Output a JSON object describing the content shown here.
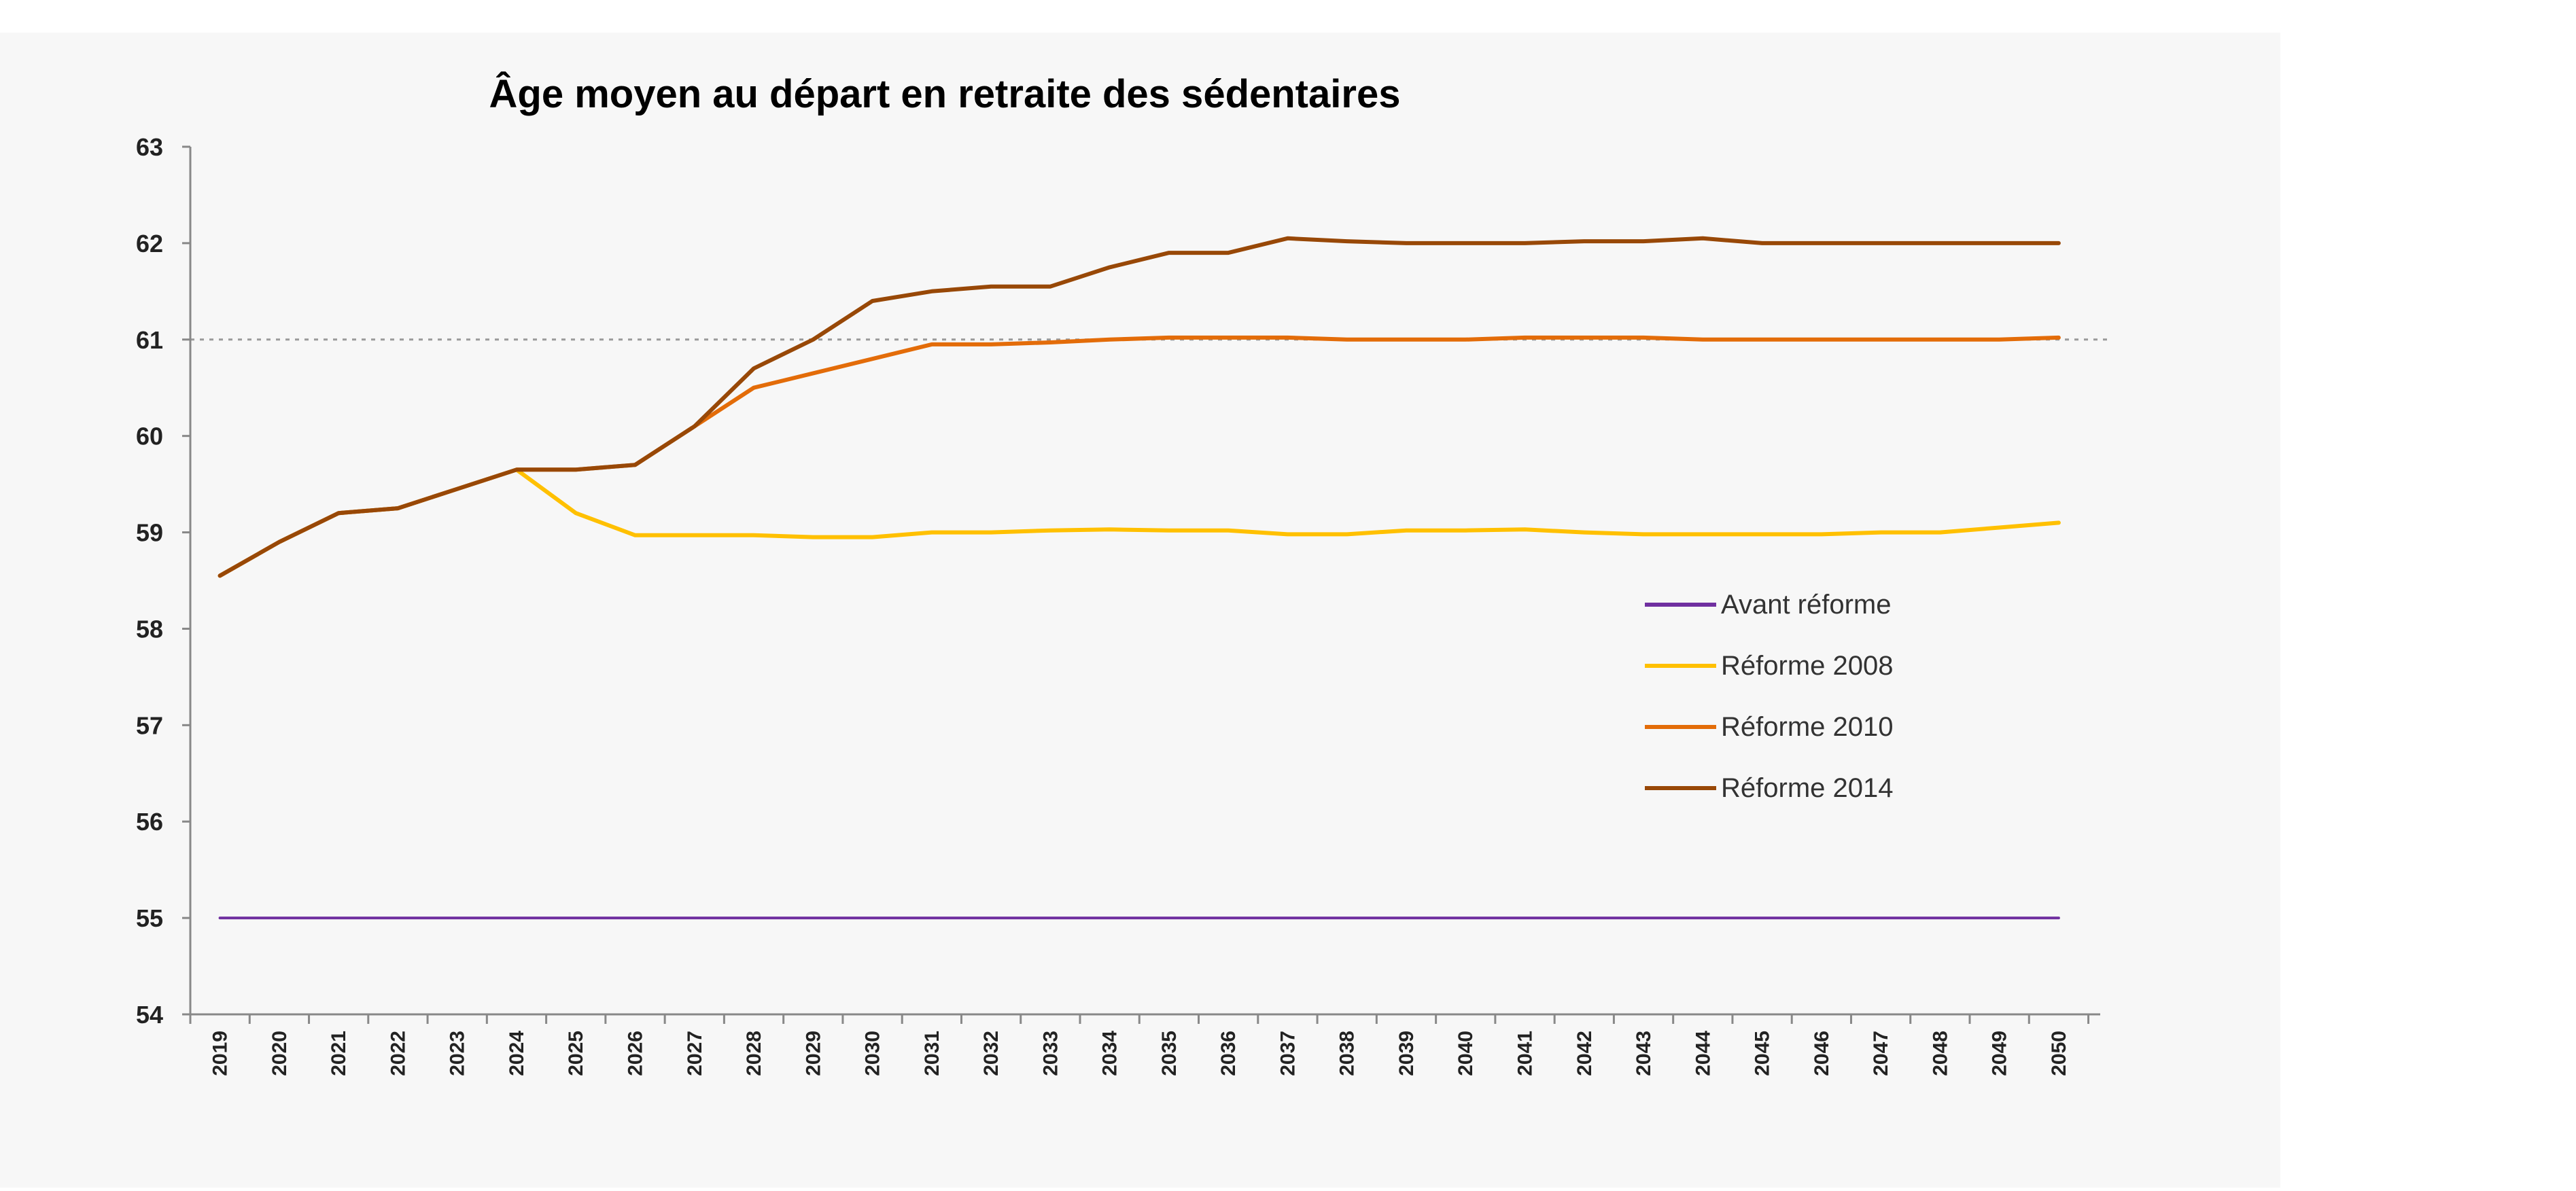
{
  "chart_data": {
    "type": "line",
    "title": "Âge moyen au départ en retraite des sédentaires",
    "xlabel": "",
    "ylabel": "",
    "ylim": [
      54,
      63
    ],
    "yticks": [
      "54",
      "55",
      "56",
      "57",
      "58",
      "59",
      "60",
      "61",
      "62",
      "63"
    ],
    "reference_line": 61,
    "grid": false,
    "legend_position": "right",
    "x": [
      "2019",
      "2020",
      "2021",
      "2022",
      "2023",
      "2024",
      "2025",
      "2026",
      "2027",
      "2028",
      "2029",
      "2030",
      "2031",
      "2032",
      "2033",
      "2034",
      "2035",
      "2036",
      "2037",
      "2038",
      "2039",
      "2040",
      "2041",
      "2042",
      "2043",
      "2044",
      "2045",
      "2046",
      "2047",
      "2048",
      "2049",
      "2050"
    ],
    "series": [
      {
        "name": "Avant réforme",
        "color": "#7030a0",
        "values": [
          55,
          55,
          55,
          55,
          55,
          55,
          55,
          55,
          55,
          55,
          55,
          55,
          55,
          55,
          55,
          55,
          55,
          55,
          55,
          55,
          55,
          55,
          55,
          55,
          55,
          55,
          55,
          55,
          55,
          55,
          55,
          55
        ]
      },
      {
        "name": "Réforme 2008",
        "color": "#ffc000",
        "values": [
          58.55,
          58.9,
          59.2,
          59.25,
          59.45,
          59.65,
          59.2,
          58.97,
          58.97,
          58.97,
          58.95,
          58.95,
          59.0,
          59.0,
          59.02,
          59.03,
          59.02,
          59.02,
          58.98,
          58.98,
          59.02,
          59.02,
          59.03,
          59.0,
          58.98,
          58.98,
          58.98,
          58.98,
          59.0,
          59.0,
          59.05,
          59.1
        ]
      },
      {
        "name": "Réforme 2010",
        "color": "#e36c09",
        "values": [
          58.55,
          58.9,
          59.2,
          59.25,
          59.45,
          59.65,
          59.65,
          59.7,
          60.1,
          60.5,
          60.65,
          60.8,
          60.95,
          60.95,
          60.97,
          61.0,
          61.02,
          61.02,
          61.02,
          61.0,
          61.0,
          61.0,
          61.02,
          61.02,
          61.02,
          61.0,
          61.0,
          61.0,
          61.0,
          61.0,
          61.0,
          61.02
        ]
      },
      {
        "name": "Réforme 2014",
        "color": "#984807",
        "values": [
          58.55,
          58.9,
          59.2,
          59.25,
          59.45,
          59.65,
          59.65,
          59.7,
          60.1,
          60.7,
          61.0,
          61.4,
          61.5,
          61.55,
          61.55,
          61.75,
          61.9,
          61.9,
          62.05,
          62.02,
          62.0,
          62.0,
          62.0,
          62.02,
          62.02,
          62.05,
          62.0,
          62.0,
          62.0,
          62.0,
          62.0,
          62.0
        ]
      }
    ]
  }
}
